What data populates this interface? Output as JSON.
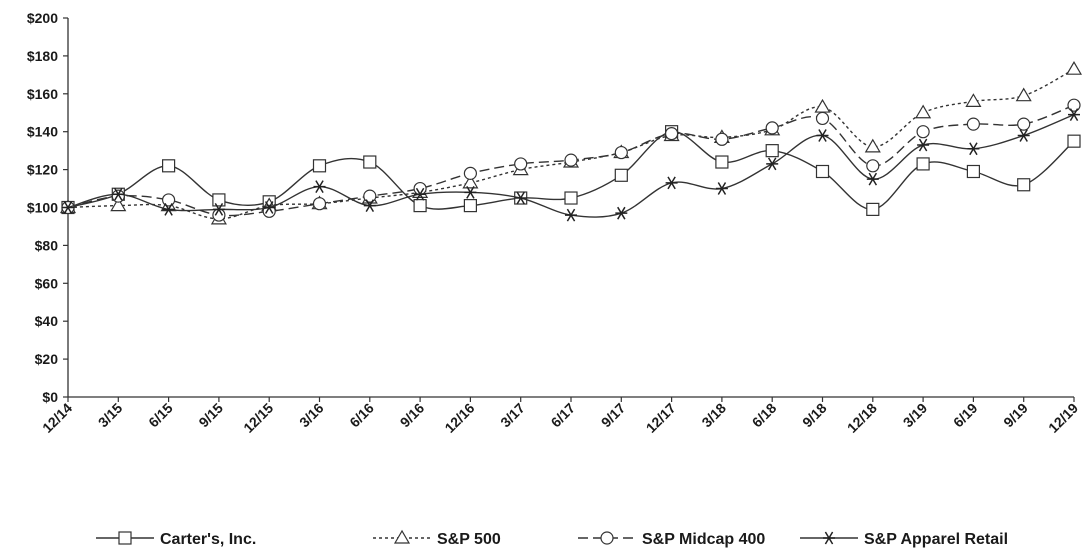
{
  "chart_data": {
    "type": "line",
    "title": "",
    "xlabel": "",
    "ylabel": "",
    "x": [
      "12/14",
      "3/15",
      "6/15",
      "9/15",
      "12/15",
      "3/16",
      "6/16",
      "9/16",
      "12/16",
      "3/17",
      "6/17",
      "9/17",
      "12/17",
      "3/18",
      "6/18",
      "9/18",
      "12/18",
      "3/19",
      "6/19",
      "9/19",
      "12/19"
    ],
    "yticks": [
      "$0",
      "$20",
      "$40",
      "$60",
      "$80",
      "$100",
      "$120",
      "$140",
      "$160",
      "$180",
      "$200"
    ],
    "ylim": [
      0,
      200
    ],
    "grid": false,
    "legend_position": "bottom",
    "series": [
      {
        "name": "Carter's, Inc.",
        "marker": "square",
        "dash": "solid",
        "values": [
          100,
          107,
          122,
          104,
          103,
          122,
          124,
          101,
          101,
          105,
          105,
          117,
          140,
          124,
          130,
          119,
          99,
          123,
          119,
          112,
          135
        ]
      },
      {
        "name": "S&P 500",
        "marker": "triangle",
        "dash": "dotted",
        "values": [
          100,
          101,
          101,
          94,
          101,
          102,
          105,
          108,
          113,
          120,
          124,
          129,
          138,
          137,
          141,
          153,
          132,
          150,
          156,
          159,
          173
        ]
      },
      {
        "name": "S&P Midcap 400",
        "marker": "circle",
        "dash": "dashed",
        "values": [
          100,
          106,
          104,
          96,
          98,
          102,
          106,
          110,
          118,
          123,
          125,
          129,
          139,
          136,
          142,
          147,
          122,
          140,
          144,
          144,
          154
        ]
      },
      {
        "name": "S&P Apparel Retail",
        "marker": "star",
        "dash": "solid",
        "values": [
          100,
          107,
          99,
          99,
          100,
          111,
          101,
          107,
          108,
          105,
          96,
          97,
          113,
          110,
          123,
          138,
          115,
          133,
          131,
          138,
          149
        ]
      }
    ]
  }
}
